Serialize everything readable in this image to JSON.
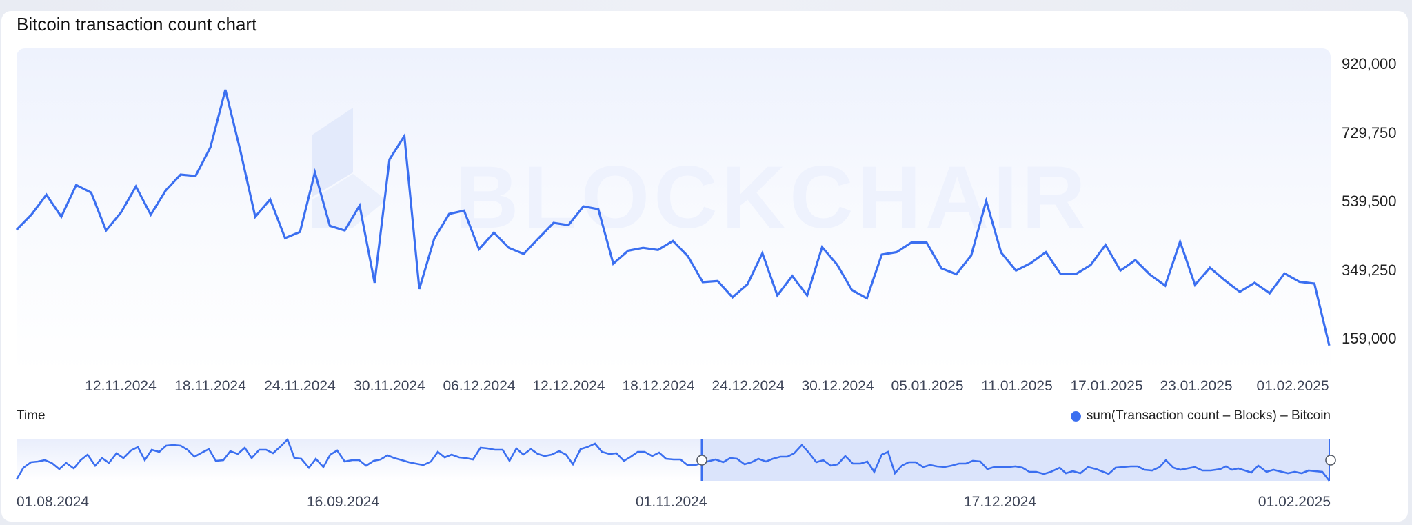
{
  "title": "Bitcoin transaction count chart",
  "watermark": "BLOCKCHAIR",
  "y_axis": {
    "ticks": [
      {
        "label": "920,000",
        "value": 920000
      },
      {
        "label": "729,750",
        "value": 729750
      },
      {
        "label": "539,500",
        "value": 539500
      },
      {
        "label": "349,250",
        "value": 349250
      },
      {
        "label": "159,000",
        "value": 159000
      }
    ]
  },
  "x_axis": {
    "ticks": [
      "12.11.2024",
      "18.11.2024",
      "24.11.2024",
      "30.11.2024",
      "06.12.2024",
      "12.12.2024",
      "18.12.2024",
      "24.12.2024",
      "30.12.2024",
      "05.01.2025",
      "11.01.2025",
      "17.01.2025",
      "23.01.2025",
      "01.02.2025"
    ]
  },
  "time_label": "Time",
  "legend": {
    "label": "sum(Transaction count – Blocks) – Bitcoin",
    "color": "#3b6ff0"
  },
  "navigator": {
    "labels": [
      "01.08.2024",
      "16.09.2024",
      "01.11.2024",
      "17.12.2024",
      "01.02.2025"
    ],
    "selection_start": "01.11.2024",
    "selection_end": "01.02.2025"
  },
  "colors": {
    "line": "#3b6ff0",
    "selection": "#dbe4fb",
    "handle_border": "#555b66"
  },
  "chart_data": {
    "type": "line",
    "title": "Bitcoin transaction count chart",
    "xlabel": "Time",
    "ylabel": "",
    "ylim": [
      159000,
      920000
    ],
    "x_range": [
      "06.11.2024",
      "02.02.2025"
    ],
    "grid": false,
    "legend_position": "bottom-right",
    "series": [
      {
        "name": "sum(Transaction count – Blocks) – Bitcoin",
        "values": [
          461000,
          503000,
          558000,
          497000,
          585000,
          564000,
          459000,
          509000,
          581000,
          503000,
          570000,
          614000,
          610000,
          690000,
          849000,
          681000,
          497000,
          545000,
          438000,
          455000,
          620000,
          472000,
          459000,
          528000,
          314000,
          656000,
          721000,
          297000,
          436000,
          505000,
          514000,
          407000,
          453000,
          411000,
          394000,
          438000,
          480000,
          474000,
          526000,
          518000,
          367000,
          403000,
          411000,
          405000,
          430000,
          388000,
          316000,
          319000,
          274000,
          310000,
          396000,
          279000,
          333000,
          279000,
          413000,
          365000,
          294000,
          271000,
          392000,
          399000,
          426000,
          426000,
          354000,
          338000,
          390000,
          541000,
          398000,
          348000,
          369000,
          399000,
          338000,
          338000,
          363000,
          419000,
          348000,
          377000,
          336000,
          306000,
          428000,
          308000,
          356000,
          321000,
          289000,
          314000,
          285000,
          340000,
          317000,
          312000,
          140000
        ]
      }
    ]
  }
}
